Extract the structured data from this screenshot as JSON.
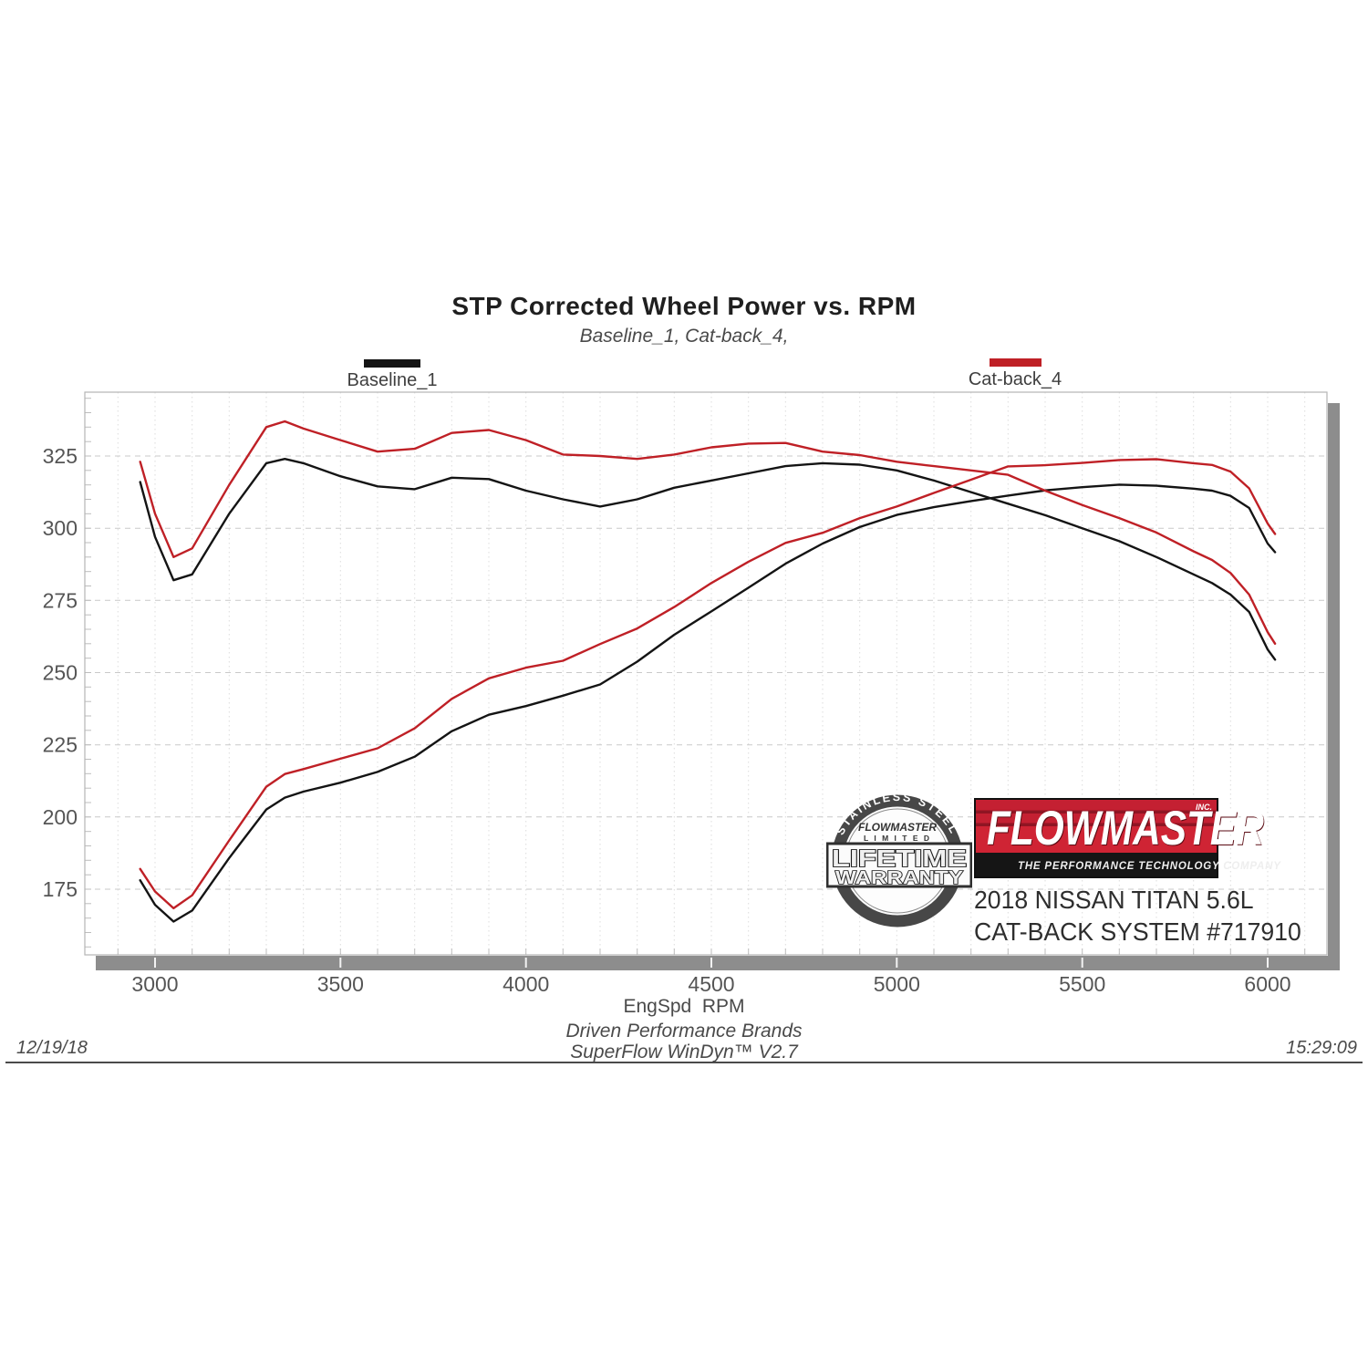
{
  "title": "STP Corrected Wheel Power vs. RPM",
  "subtitle": "Baseline_1, Cat-back_4,",
  "legend": [
    {
      "label": "Baseline_1",
      "color": "#141414"
    },
    {
      "label": "Cat-back_4",
      "color": "#bf2026"
    }
  ],
  "x_axis_label": "EngSpd  RPM",
  "footer": {
    "line1": "Driven Performance Brands",
    "line2": "SuperFlow WinDyn™ V2.7",
    "date": "12/19/18",
    "time": "15:29:09"
  },
  "badge": {
    "arc": "STAINLESS STEEL",
    "brand": "FLOWMASTER",
    "limited": "L I M I T E D",
    "line1": "LIFETIME",
    "line2": "WARRANTY"
  },
  "logo": {
    "name": "FLOWMASTER",
    "suffix": "INC.",
    "tagline": "THE PERFORMANCE TECHNOLOGY COMPANY",
    "red": "#c42032"
  },
  "vehicle": {
    "line1": "2018 NISSAN TITAN 5.6L",
    "line2": "CAT-BACK SYSTEM #717910"
  },
  "colors": {
    "baseline": "#141414",
    "catback": "#bf2026",
    "shadow": "#8d8d8d",
    "grid_minor": "#dcdcdc",
    "grid_major": "#c9c9c9",
    "plot_border": "#b5b5b5"
  },
  "chart_data": {
    "type": "line",
    "title": "STP Corrected Wheel Power vs. RPM",
    "subtitle": "Baseline_1, Cat-back_4,",
    "xlabel": "EngSpd  RPM",
    "ylabel": "",
    "xlim": [
      2810,
      6160
    ],
    "ylim": [
      152,
      347
    ],
    "x_ticks": [
      3000,
      3500,
      4000,
      4500,
      5000,
      5500,
      6000
    ],
    "y_ticks": [
      175,
      200,
      225,
      250,
      275,
      300,
      325
    ],
    "grid": {
      "x_minor_step_rpm": 100,
      "y_major_step": 25,
      "style": "dotted minor vertical, dashed major horizontal"
    },
    "legend_position": "top",
    "x": [
      2960,
      3000,
      3050,
      3100,
      3200,
      3300,
      3350,
      3400,
      3500,
      3600,
      3700,
      3800,
      3900,
      4000,
      4100,
      4200,
      4300,
      4400,
      4500,
      4600,
      4700,
      4800,
      4900,
      5000,
      5100,
      5200,
      5300,
      5400,
      5500,
      5600,
      5700,
      5800,
      5850,
      5900,
      5950,
      6000,
      6020
    ],
    "series": [
      {
        "id": "baseline-power",
        "name": "Baseline_1 wheel power (rising curve)",
        "color": "#141414",
        "values": [
          178.1,
          169.6,
          163.8,
          167.6,
          185.8,
          202.6,
          206.7,
          208.8,
          211.9,
          215.6,
          220.9,
          229.7,
          235.4,
          238.4,
          242.0,
          245.9,
          253.8,
          263.1,
          271.2,
          279.4,
          287.7,
          294.7,
          300.4,
          304.6,
          307.3,
          309.4,
          311.3,
          313.1,
          314.2,
          315.1,
          314.7,
          313.7,
          313.0,
          311.2,
          307.0,
          294.7,
          291.7
        ]
      },
      {
        "id": "baseline-torque",
        "name": "Baseline_1 torque (upper-left curve)",
        "color": "#141414",
        "values": [
          316,
          297,
          282,
          284,
          305,
          322.5,
          324,
          322.5,
          318,
          314.5,
          313.5,
          317.5,
          317,
          313,
          310,
          307.5,
          310,
          314,
          316.5,
          319,
          321.5,
          322.5,
          322,
          320,
          316.5,
          312.5,
          308.5,
          304.5,
          300,
          295.5,
          290,
          284,
          281,
          277,
          271,
          258,
          254.5
        ]
      },
      {
        "id": "catback-power",
        "name": "Cat-back_4 wheel power (rising curve)",
        "color": "#bf2026",
        "values": [
          182.0,
          174.2,
          168.4,
          172.9,
          191.9,
          210.5,
          214.9,
          216.6,
          220.2,
          223.8,
          230.7,
          240.9,
          248.0,
          251.7,
          254.1,
          259.9,
          265.3,
          272.7,
          281.0,
          288.4,
          294.9,
          298.4,
          303.5,
          307.5,
          312.2,
          316.8,
          321.4,
          321.8,
          322.6,
          323.6,
          323.9,
          322.5,
          321.9,
          319.6,
          313.8,
          301.6,
          298.0
        ]
      },
      {
        "id": "catback-torque",
        "name": "Cat-back_4 torque (upper-left curve)",
        "color": "#bf2026",
        "values": [
          323,
          305,
          290,
          293,
          315,
          335,
          337,
          334.5,
          330.5,
          326.5,
          327.5,
          333,
          334,
          330.5,
          325.5,
          325,
          324,
          325.5,
          328,
          329.3,
          329.5,
          326.5,
          325.3,
          323,
          321.5,
          320,
          318.5,
          313,
          308,
          303.5,
          298.5,
          292,
          289,
          284.5,
          277,
          264,
          260
        ]
      }
    ]
  }
}
